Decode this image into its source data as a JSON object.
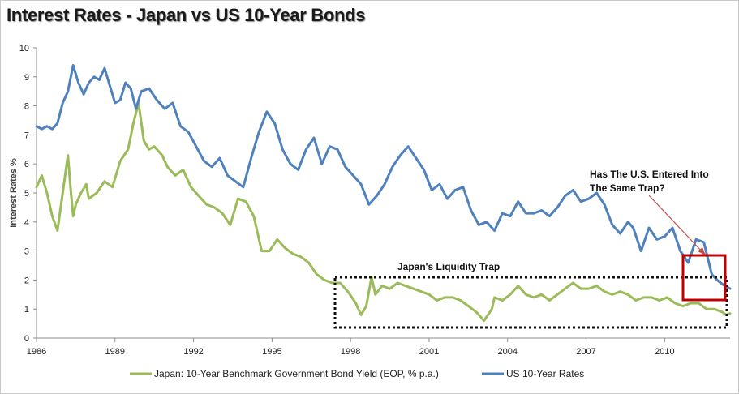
{
  "chart_data": {
    "type": "line",
    "title": "Interest Rates - Japan vs US 10-Year Bonds",
    "ylabel": "Interest Rates %",
    "xlabel": "",
    "ylim": [
      0,
      10
    ],
    "xlim": [
      1986,
      2012.5
    ],
    "yticks": [
      "0",
      "1",
      "2",
      "3",
      "4",
      "5",
      "6",
      "7",
      "8",
      "9",
      "10"
    ],
    "xticks": [
      "1986",
      "1989",
      "1992",
      "1995",
      "1998",
      "2001",
      "2004",
      "2007",
      "2010"
    ],
    "grid": false,
    "legend": "bottom",
    "series": [
      {
        "name": "Japan: 10-Year Benchmark Government Bond Yield (EOP, % p.a.)",
        "color": "#9bbb59",
        "x": [
          1986.0,
          1986.2,
          1986.4,
          1986.6,
          1986.8,
          1987.0,
          1987.2,
          1987.3,
          1987.4,
          1987.5,
          1987.7,
          1987.9,
          1988.0,
          1988.3,
          1988.6,
          1988.9,
          1989.2,
          1989.5,
          1989.7,
          1989.9,
          1990.1,
          1990.3,
          1990.5,
          1990.8,
          1991.0,
          1991.3,
          1991.6,
          1991.9,
          1992.2,
          1992.5,
          1992.8,
          1993.1,
          1993.4,
          1993.7,
          1994.0,
          1994.3,
          1994.6,
          1994.9,
          1995.2,
          1995.5,
          1995.8,
          1996.1,
          1996.4,
          1996.7,
          1997.0,
          1997.3,
          1997.6,
          1997.9,
          1998.2,
          1998.4,
          1998.6,
          1998.8,
          1998.95,
          1999.2,
          1999.5,
          1999.8,
          2000.1,
          2000.4,
          2000.7,
          2001.0,
          2001.3,
          2001.6,
          2001.9,
          2002.2,
          2002.5,
          2002.8,
          2003.1,
          2003.4,
          2003.5,
          2003.8,
          2004.1,
          2004.4,
          2004.7,
          2005.0,
          2005.3,
          2005.6,
          2005.9,
          2006.2,
          2006.5,
          2006.8,
          2007.1,
          2007.4,
          2007.7,
          2008.0,
          2008.3,
          2008.6,
          2008.9,
          2009.2,
          2009.5,
          2009.8,
          2010.1,
          2010.4,
          2010.7,
          2011.0,
          2011.3,
          2011.6,
          2011.9,
          2012.2,
          2012.35,
          2012.5
        ],
        "values": [
          5.2,
          5.6,
          5.0,
          4.2,
          3.7,
          5.0,
          6.3,
          5.2,
          4.2,
          4.6,
          5.0,
          5.3,
          4.8,
          5.0,
          5.4,
          5.2,
          6.1,
          6.5,
          7.4,
          8.1,
          6.8,
          6.5,
          6.6,
          6.3,
          5.9,
          5.6,
          5.8,
          5.2,
          4.9,
          4.6,
          4.5,
          4.3,
          3.9,
          4.8,
          4.7,
          4.2,
          3.0,
          3.0,
          3.4,
          3.1,
          2.9,
          2.8,
          2.6,
          2.2,
          2.0,
          1.9,
          1.9,
          1.6,
          1.2,
          0.8,
          1.1,
          2.1,
          1.5,
          1.8,
          1.7,
          1.9,
          1.8,
          1.7,
          1.6,
          1.5,
          1.3,
          1.4,
          1.4,
          1.3,
          1.1,
          0.9,
          0.6,
          1.0,
          1.4,
          1.3,
          1.5,
          1.8,
          1.5,
          1.4,
          1.5,
          1.3,
          1.5,
          1.7,
          1.9,
          1.7,
          1.7,
          1.8,
          1.6,
          1.5,
          1.6,
          1.5,
          1.3,
          1.4,
          1.4,
          1.3,
          1.4,
          1.2,
          1.1,
          1.2,
          1.2,
          1.0,
          1.0,
          0.9,
          0.8,
          0.85
        ]
      },
      {
        "name": "US 10-Year Rates",
        "color": "#4f81bd",
        "x": [
          1986.0,
          1986.2,
          1986.4,
          1986.6,
          1986.8,
          1987.0,
          1987.2,
          1987.4,
          1987.6,
          1987.8,
          1988.0,
          1988.2,
          1988.4,
          1988.6,
          1988.8,
          1989.0,
          1989.2,
          1989.4,
          1989.6,
          1989.8,
          1990.0,
          1990.3,
          1990.6,
          1990.9,
          1991.2,
          1991.5,
          1991.8,
          1992.1,
          1992.4,
          1992.7,
          1993.0,
          1993.3,
          1993.6,
          1993.9,
          1994.2,
          1994.5,
          1994.8,
          1995.1,
          1995.4,
          1995.7,
          1996.0,
          1996.3,
          1996.6,
          1996.9,
          1997.2,
          1997.5,
          1997.8,
          1998.1,
          1998.4,
          1998.7,
          1999.0,
          1999.3,
          1999.6,
          1999.9,
          2000.2,
          2000.5,
          2000.8,
          2001.1,
          2001.4,
          2001.7,
          2002.0,
          2002.3,
          2002.6,
          2002.9,
          2003.2,
          2003.5,
          2003.8,
          2004.1,
          2004.4,
          2004.7,
          2005.0,
          2005.3,
          2005.6,
          2005.9,
          2006.2,
          2006.5,
          2006.8,
          2007.1,
          2007.4,
          2007.7,
          2008.0,
          2008.3,
          2008.6,
          2008.8,
          2009.1,
          2009.4,
          2009.7,
          2010.0,
          2010.3,
          2010.6,
          2010.9,
          2011.2,
          2011.5,
          2011.8,
          2012.0,
          2012.3,
          2012.5
        ],
        "values": [
          7.3,
          7.2,
          7.3,
          7.2,
          7.4,
          8.1,
          8.5,
          9.4,
          8.8,
          8.4,
          8.8,
          9.0,
          8.9,
          9.3,
          8.7,
          8.1,
          8.2,
          8.8,
          8.6,
          7.9,
          8.5,
          8.6,
          8.2,
          7.9,
          8.1,
          7.3,
          7.1,
          6.6,
          6.1,
          5.9,
          6.2,
          5.6,
          5.4,
          5.2,
          6.2,
          7.1,
          7.8,
          7.4,
          6.5,
          6.0,
          5.8,
          6.5,
          6.9,
          6.0,
          6.6,
          6.5,
          5.9,
          5.6,
          5.3,
          4.6,
          4.9,
          5.3,
          5.9,
          6.3,
          6.6,
          6.2,
          5.8,
          5.1,
          5.3,
          4.8,
          5.1,
          5.2,
          4.4,
          3.9,
          4.0,
          3.7,
          4.3,
          4.2,
          4.7,
          4.3,
          4.3,
          4.4,
          4.2,
          4.5,
          4.9,
          5.1,
          4.7,
          4.8,
          5.0,
          4.6,
          3.9,
          3.6,
          4.0,
          3.8,
          3.0,
          3.8,
          3.4,
          3.5,
          3.8,
          3.0,
          2.6,
          3.4,
          3.3,
          2.2,
          2.0,
          1.8,
          1.7
        ]
      }
    ],
    "annotations": [
      {
        "text": "Japan's Liquidity Trap"
      },
      {
        "text": "Has The U.S. Entered Into"
      },
      {
        "text": "The Same Trap?"
      }
    ]
  }
}
